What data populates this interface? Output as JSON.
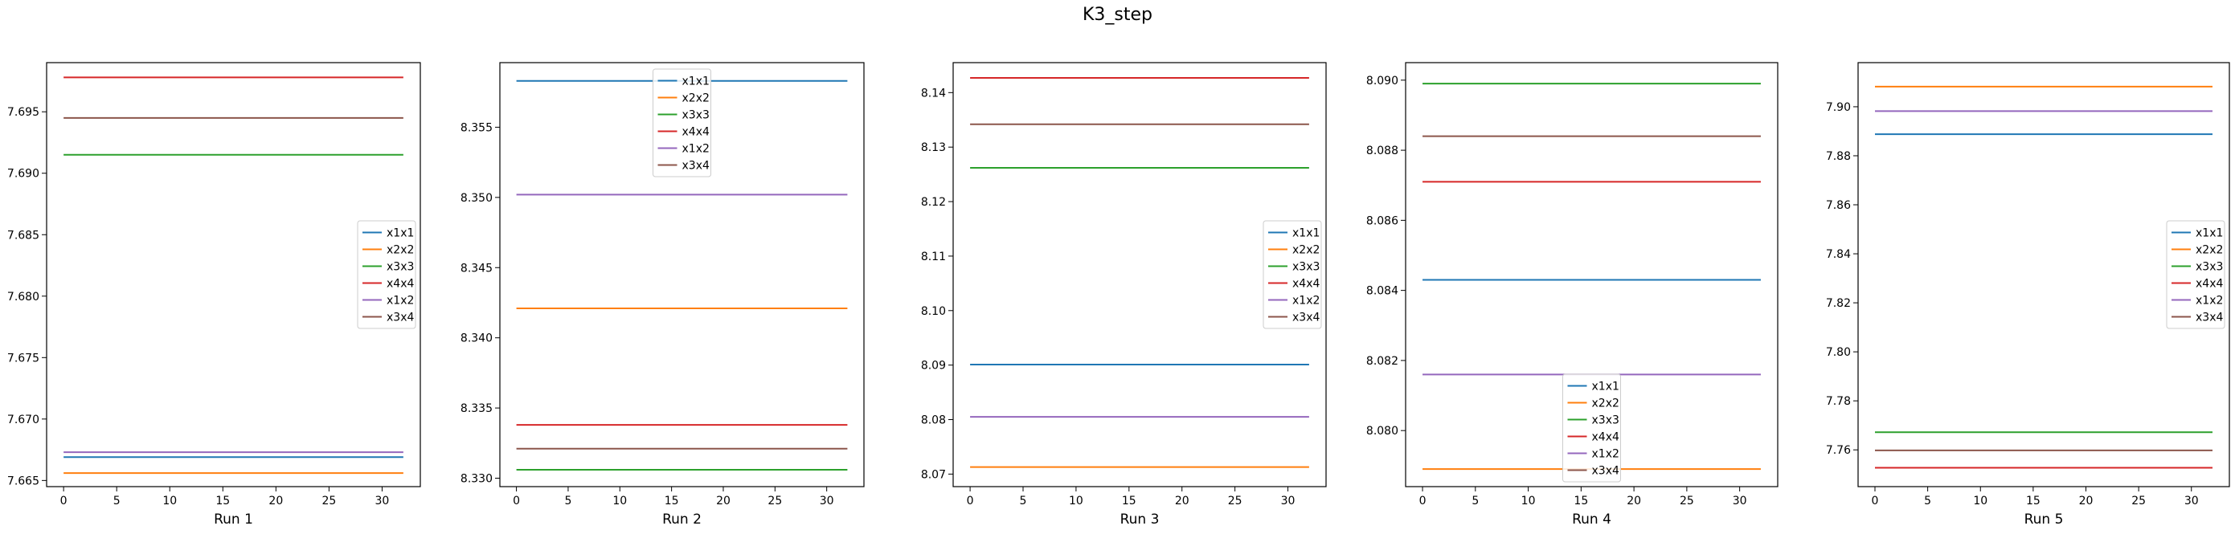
{
  "suptitle": "K3_step",
  "series_names": [
    "x1x1",
    "x2x2",
    "x3x3",
    "x4x4",
    "x1x2",
    "x3x4"
  ],
  "colors": {
    "x1x1": "#1f77b4",
    "x2x2": "#ff7f0e",
    "x3x3": "#2ca02c",
    "x4x4": "#d62728",
    "x1x2": "#9467bd",
    "x3x4": "#8c564b"
  },
  "chart_data": [
    {
      "type": "line",
      "xlabel": "Run 1",
      "x": [
        0,
        32
      ],
      "xticks": [
        0,
        5,
        10,
        15,
        20,
        25,
        30
      ],
      "xlim": [
        -1.6,
        33.6
      ],
      "ylim": [
        7.6645,
        7.699
      ],
      "yticks": [
        "7.665",
        "7.670",
        "7.675",
        "7.680",
        "7.685",
        "7.690",
        "7.695"
      ],
      "legend_loc": "center-right",
      "series": [
        {
          "name": "x1x1",
          "values": [
            7.6669,
            7.6669
          ]
        },
        {
          "name": "x2x2",
          "values": [
            7.6656,
            7.6656
          ]
        },
        {
          "name": "x3x3",
          "values": [
            7.6915,
            7.6915
          ]
        },
        {
          "name": "x4x4",
          "values": [
            7.6978,
            7.6978
          ]
        },
        {
          "name": "x1x2",
          "values": [
            7.6673,
            7.6673
          ]
        },
        {
          "name": "x3x4",
          "values": [
            7.6945,
            7.6945
          ]
        }
      ]
    },
    {
      "type": "line",
      "xlabel": "Run 2",
      "x": [
        0,
        32
      ],
      "xticks": [
        0,
        5,
        10,
        15,
        20,
        25,
        30
      ],
      "xlim": [
        -1.6,
        33.6
      ],
      "ylim": [
        8.3294,
        8.3596
      ],
      "yticks": [
        "8.330",
        "8.335",
        "8.340",
        "8.345",
        "8.350",
        "8.355"
      ],
      "legend_loc": "top-center",
      "series": [
        {
          "name": "x1x1",
          "values": [
            8.3583,
            8.3583
          ]
        },
        {
          "name": "x2x2",
          "values": [
            8.3421,
            8.3421
          ]
        },
        {
          "name": "x3x3",
          "values": [
            8.3306,
            8.3306
          ]
        },
        {
          "name": "x4x4",
          "values": [
            8.3338,
            8.3338
          ]
        },
        {
          "name": "x1x2",
          "values": [
            8.3502,
            8.3502
          ]
        },
        {
          "name": "x3x4",
          "values": [
            8.3321,
            8.3321
          ]
        }
      ]
    },
    {
      "type": "line",
      "xlabel": "Run 3",
      "x": [
        0,
        32
      ],
      "xticks": [
        0,
        5,
        10,
        15,
        20,
        25,
        30
      ],
      "xlim": [
        -1.6,
        33.6
      ],
      "ylim": [
        8.0677,
        8.1455
      ],
      "yticks": [
        "8.07",
        "8.08",
        "8.09",
        "8.10",
        "8.11",
        "8.12",
        "8.13",
        "8.14"
      ],
      "legend_loc": "center-right",
      "series": [
        {
          "name": "x1x1",
          "values": [
            8.0901,
            8.0901
          ]
        },
        {
          "name": "x2x2",
          "values": [
            8.0713,
            8.0713
          ]
        },
        {
          "name": "x3x3",
          "values": [
            8.1262,
            8.1262
          ]
        },
        {
          "name": "x4x4",
          "values": [
            8.1427,
            8.1427
          ]
        },
        {
          "name": "x1x2",
          "values": [
            8.0805,
            8.0805
          ]
        },
        {
          "name": "x3x4",
          "values": [
            8.1342,
            8.1342
          ]
        }
      ]
    },
    {
      "type": "line",
      "xlabel": "Run 4",
      "x": [
        0,
        32
      ],
      "xticks": [
        0,
        5,
        10,
        15,
        20,
        25,
        30
      ],
      "xlim": [
        -1.6,
        33.6
      ],
      "ylim": [
        8.0784,
        8.0905
      ],
      "yticks": [
        "8.080",
        "8.082",
        "8.084",
        "8.086",
        "8.088",
        "8.090"
      ],
      "legend_loc": "lower-center",
      "series": [
        {
          "name": "x1x1",
          "values": [
            8.0843,
            8.0843
          ]
        },
        {
          "name": "x2x2",
          "values": [
            8.0789,
            8.0789
          ]
        },
        {
          "name": "x3x3",
          "values": [
            8.0899,
            8.0899
          ]
        },
        {
          "name": "x4x4",
          "values": [
            8.0871,
            8.0871
          ]
        },
        {
          "name": "x1x2",
          "values": [
            8.0816,
            8.0816
          ]
        },
        {
          "name": "x3x4",
          "values": [
            8.0884,
            8.0884
          ]
        }
      ]
    },
    {
      "type": "line",
      "xlabel": "Run 5",
      "x": [
        0,
        32
      ],
      "xticks": [
        0,
        5,
        10,
        15,
        20,
        25,
        30
      ],
      "xlim": [
        -1.6,
        33.6
      ],
      "ylim": [
        7.745,
        7.918
      ],
      "yticks": [
        "7.76",
        "7.78",
        "7.80",
        "7.82",
        "7.84",
        "7.86",
        "7.88",
        "7.90"
      ],
      "legend_loc": "center-right",
      "series": [
        {
          "name": "x1x1",
          "values": [
            7.8888,
            7.8888
          ]
        },
        {
          "name": "x2x2",
          "values": [
            7.9082,
            7.9082
          ]
        },
        {
          "name": "x3x3",
          "values": [
            7.7672,
            7.7672
          ]
        },
        {
          "name": "x4x4",
          "values": [
            7.7527,
            7.7527
          ]
        },
        {
          "name": "x1x2",
          "values": [
            7.8982,
            7.8982
          ]
        },
        {
          "name": "x3x4",
          "values": [
            7.7598,
            7.7598
          ]
        }
      ]
    }
  ]
}
